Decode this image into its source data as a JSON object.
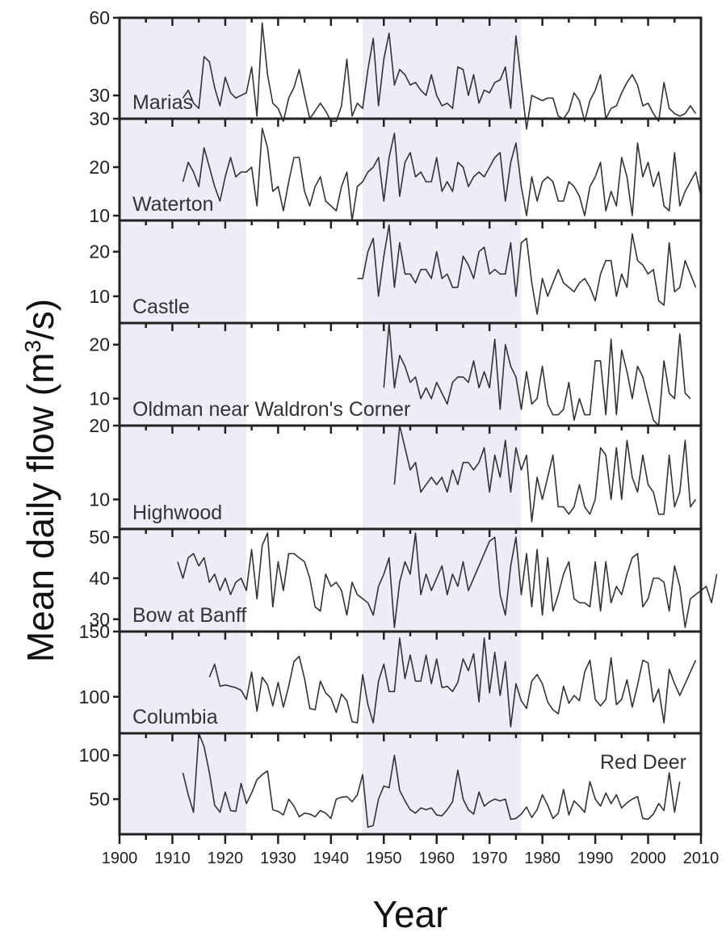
{
  "chart_data": {
    "type": "line",
    "xlabel": "Year",
    "ylabel": "Mean daily flow (m³/s)",
    "ylabel_parts": {
      "pre": "Mean daily flow (m",
      "sup": "3",
      "post": "/s)"
    },
    "xlim": [
      1900,
      2010
    ],
    "xticks": [
      1900,
      1910,
      1920,
      1930,
      1940,
      1950,
      1960,
      1970,
      1980,
      1990,
      2000,
      2010
    ],
    "shaded_periods": [
      [
        1900,
        1924
      ],
      [
        1946,
        1976
      ]
    ],
    "panels": [
      {
        "name": "Marias",
        "label_position": "bottom-left",
        "ylim": [
          21,
          60
        ],
        "yticks": [
          30,
          60
        ],
        "ytick_labels": [
          "30",
          "60"
        ],
        "start_year": 1912,
        "values": [
          29,
          32,
          27,
          25,
          45,
          43,
          33,
          26,
          37,
          31,
          29,
          30,
          31,
          41,
          22,
          58,
          38,
          27,
          25,
          20,
          29,
          33,
          40,
          30,
          21,
          24,
          27,
          24,
          20,
          20,
          26,
          44,
          22,
          27,
          25,
          40,
          52,
          26,
          44,
          54,
          34,
          40,
          38,
          34,
          35,
          32,
          30,
          38,
          30,
          26,
          27,
          25,
          41,
          40,
          30,
          38,
          27,
          32,
          31,
          35,
          36,
          41,
          25,
          53,
          35,
          17,
          30,
          29,
          28,
          29,
          29,
          22,
          21,
          24,
          31,
          28,
          20,
          28,
          32,
          38,
          21,
          25,
          26,
          31,
          35,
          38,
          34,
          26,
          27,
          23,
          20,
          35,
          25,
          23,
          22,
          23,
          26,
          23
        ]
      },
      {
        "name": "Waterton",
        "label_position": "bottom-left",
        "ylim": [
          9,
          30
        ],
        "yticks": [
          10,
          20,
          30
        ],
        "ytick_labels": [
          "10",
          "20",
          "30"
        ],
        "start_year": 1912,
        "values": [
          17,
          21,
          19,
          16,
          24,
          20,
          16,
          13,
          18,
          22,
          18,
          19,
          19,
          20,
          12,
          28,
          24,
          15,
          16,
          11,
          17,
          22,
          22,
          15,
          12,
          16,
          18,
          13,
          12,
          11,
          16,
          19,
          9,
          16,
          17,
          19,
          20,
          22,
          13,
          22,
          27,
          14,
          21,
          23,
          18,
          19,
          17,
          17,
          22,
          15,
          17,
          15,
          21,
          20,
          16,
          18,
          19,
          18,
          20,
          22,
          23,
          13,
          21,
          25,
          16,
          10,
          18,
          13,
          17,
          18,
          17,
          13,
          13,
          17,
          16,
          14,
          10,
          16,
          18,
          21,
          11,
          15,
          12,
          22,
          18,
          10,
          25,
          18,
          21,
          16,
          19,
          12,
          11,
          23,
          12,
          15,
          17,
          19,
          14
        ]
      },
      {
        "name": "Castle",
        "label_position": "bottom-left",
        "ylim": [
          4,
          27
        ],
        "yticks": [
          10,
          20
        ],
        "ytick_labels": [
          "10",
          "20"
        ],
        "start_year": 1945,
        "values": [
          14,
          14,
          20,
          23,
          10,
          19,
          26,
          12,
          22,
          15,
          15,
          13,
          16,
          16,
          14,
          20,
          14,
          15,
          12,
          12,
          19,
          17,
          14,
          20,
          21,
          15,
          16,
          15,
          15,
          22,
          10,
          22,
          23,
          13,
          6,
          14,
          10,
          13,
          16,
          13,
          12,
          11,
          13,
          14,
          12,
          9,
          15,
          18,
          18,
          10,
          15,
          12,
          24,
          18,
          17,
          15,
          16,
          9,
          8,
          22,
          11,
          12,
          18,
          15,
          12
        ]
      },
      {
        "name": "Oldman near Waldron's Corner",
        "label_position": "bottom-left",
        "ylim": [
          5,
          24
        ],
        "yticks": [
          10,
          20
        ],
        "ytick_labels": [
          "10",
          "20"
        ],
        "start_year": 1950,
        "values": [
          12,
          24,
          12,
          18,
          16,
          13,
          14,
          10,
          12,
          10,
          13,
          11,
          9,
          13,
          14,
          14,
          13,
          17,
          12,
          15,
          12,
          21,
          8,
          20,
          16,
          14,
          8,
          15,
          9,
          10,
          16,
          9,
          7,
          7,
          8,
          13,
          6,
          10,
          7,
          7,
          17,
          17,
          7,
          21,
          7,
          19,
          15,
          10,
          16,
          14,
          10,
          6,
          5,
          17,
          11,
          10,
          22,
          11,
          10
        ]
      },
      {
        "name": "Highwood",
        "label_position": "bottom-left",
        "ylim": [
          6,
          20
        ],
        "yticks": [
          10,
          20
        ],
        "ytick_labels": [
          "10",
          "20"
        ],
        "start_year": 1952,
        "values": [
          12,
          20,
          17,
          14,
          15,
          11,
          12,
          13,
          12,
          13,
          11,
          14,
          12,
          15,
          15,
          14,
          15,
          17,
          11,
          16,
          13,
          18,
          11,
          17,
          14,
          16,
          7,
          13,
          10,
          13,
          16,
          9,
          9,
          8,
          9,
          12,
          9,
          8,
          10,
          17,
          16,
          10,
          17,
          10,
          18,
          13,
          11,
          16,
          12,
          11,
          8,
          8,
          16,
          9,
          11,
          18,
          9,
          10
        ]
      },
      {
        "name": "Bow at Banff",
        "label_position": "bottom-left",
        "ylim": [
          27,
          52
        ],
        "yticks": [
          30,
          40,
          50
        ],
        "ytick_labels": [
          "30",
          "40",
          "50"
        ],
        "start_year": 1911,
        "values": [
          44,
          40,
          45,
          46,
          43,
          45,
          39,
          41,
          37,
          40,
          36,
          39,
          40,
          37,
          47,
          35,
          48,
          51,
          33,
          44,
          37,
          46,
          46,
          45,
          44,
          40,
          33,
          32,
          41,
          38,
          39,
          37,
          31,
          39,
          36,
          35,
          34,
          31,
          38,
          41,
          45,
          28,
          39,
          44,
          41,
          51,
          36,
          41,
          37,
          40,
          43,
          36,
          41,
          38,
          44,
          37,
          40,
          43,
          46,
          49,
          50,
          36,
          31,
          43,
          50,
          36,
          46,
          33,
          47,
          31,
          45,
          32,
          36,
          41,
          44,
          35,
          34,
          34,
          33,
          44,
          32,
          44,
          34,
          38,
          36,
          41,
          45,
          46,
          33,
          35,
          40,
          40,
          39,
          32,
          43,
          38,
          28,
          35,
          36,
          37,
          38,
          34,
          41
        ]
      },
      {
        "name": "Columbia",
        "label_position": "bottom-left",
        "ylim": [
          72,
          150
        ],
        "yticks": [
          100,
          150
        ],
        "ytick_labels": [
          "100",
          "150"
        ],
        "start_year": 1917,
        "values": [
          115,
          125,
          108,
          109,
          108,
          107,
          105,
          98,
          119,
          89,
          115,
          109,
          93,
          111,
          92,
          108,
          127,
          131,
          114,
          91,
          90,
          112,
          103,
          99,
          88,
          102,
          97,
          81,
          80,
          117,
          94,
          80,
          112,
          125,
          104,
          104,
          145,
          114,
          132,
          112,
          112,
          132,
          110,
          129,
          107,
          108,
          104,
          111,
          129,
          120,
          133,
          96,
          145,
          103,
          134,
          101,
          127,
          77,
          110,
          97,
          91,
          112,
          117,
          110,
          96,
          90,
          87,
          108,
          95,
          101,
          97,
          119,
          128,
          98,
          93,
          98,
          130,
          94,
          98,
          113,
          92,
          109,
          128,
          126,
          96,
          106,
          80,
          121,
          110,
          101,
          110,
          119,
          128
        ]
      },
      {
        "name": "Red Deer",
        "label_position": "top-right",
        "ylim": [
          10,
          125
        ],
        "yticks": [
          50,
          100
        ],
        "ytick_labels": [
          "50",
          "100"
        ],
        "start_year": 1912,
        "values": [
          80,
          55,
          35,
          125,
          110,
          80,
          43,
          35,
          58,
          37,
          36,
          68,
          45,
          57,
          72,
          78,
          82,
          38,
          36,
          32,
          50,
          42,
          30,
          34,
          33,
          30,
          37,
          34,
          28,
          50,
          52,
          53,
          47,
          55,
          78,
          18,
          20,
          50,
          65,
          63,
          100,
          60,
          48,
          38,
          34,
          40,
          38,
          40,
          32,
          31,
          38,
          47,
          83,
          50,
          38,
          33,
          58,
          42,
          47,
          50,
          48,
          50,
          27,
          28,
          33,
          41,
          29,
          38,
          55,
          43,
          28,
          34,
          61,
          32,
          48,
          42,
          35,
          70,
          50,
          42,
          57,
          45,
          55,
          40,
          46,
          50,
          53,
          28,
          27,
          33,
          45,
          37,
          80,
          35,
          70
        ]
      }
    ]
  }
}
